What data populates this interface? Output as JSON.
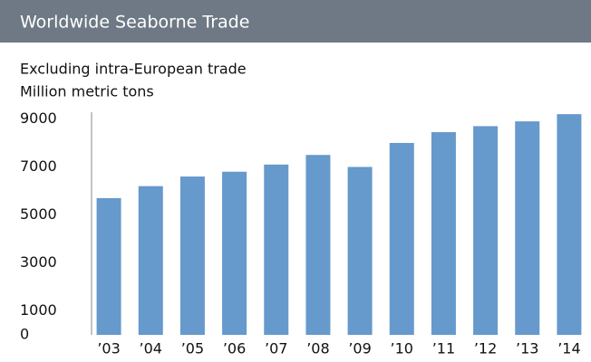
{
  "chart_data": {
    "type": "bar",
    "title": "Worldwide Seaborne Trade",
    "subtitle": [
      "Excluding intra-European trade",
      "Million metric tons"
    ],
    "categories": [
      "’03",
      "’04",
      "’05",
      "’06",
      "’07",
      "’08",
      "’09",
      "’10",
      "’11",
      "’12",
      "’13",
      "’14"
    ],
    "values": [
      5700,
      6200,
      6600,
      6800,
      7100,
      7500,
      7000,
      8000,
      8450,
      8700,
      8900,
      9200
    ],
    "color": "#6699cc",
    "ylim": [
      0,
      9300
    ],
    "yticks": [
      0,
      1000,
      3000,
      5000,
      7000,
      9000
    ],
    "grid": false
  }
}
